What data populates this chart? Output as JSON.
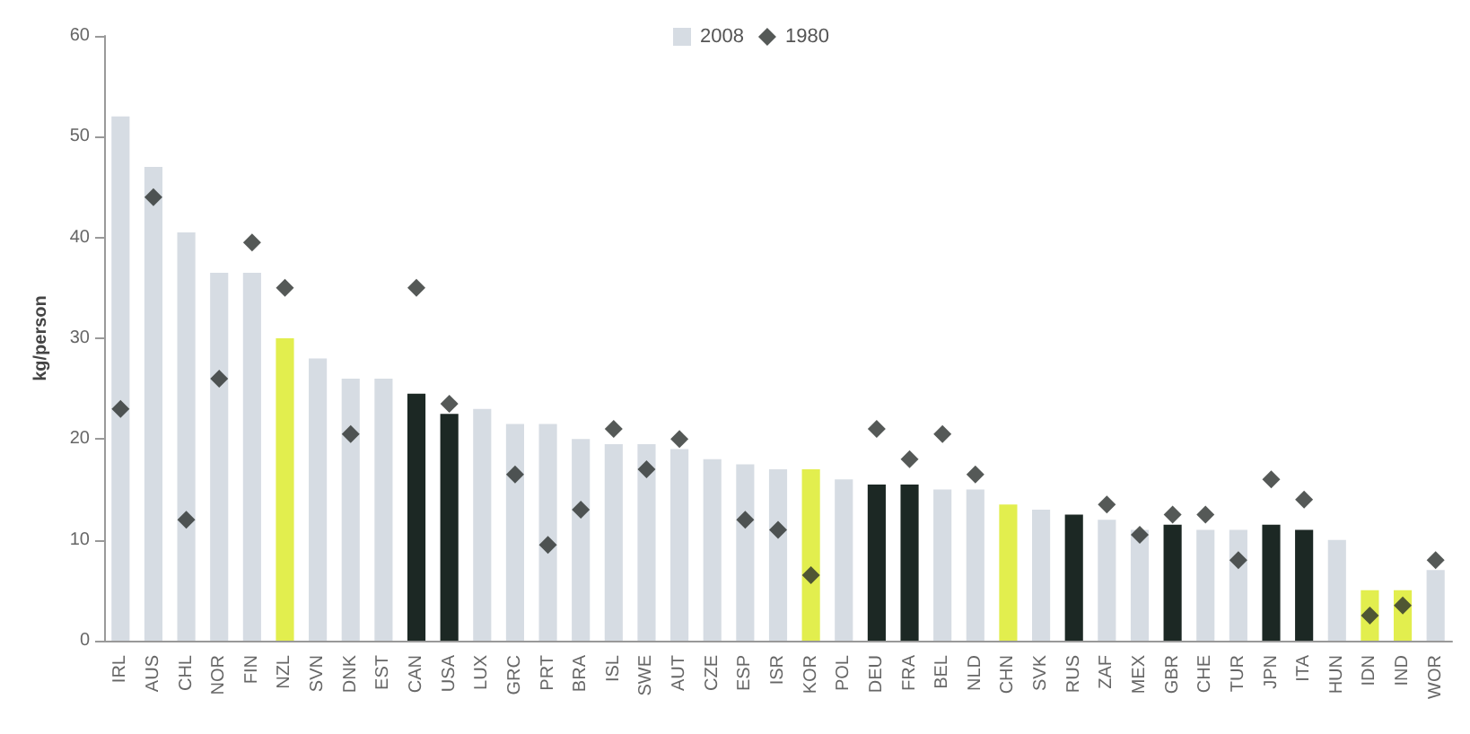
{
  "chart_data": {
    "type": "bar",
    "ylabel": "kg/person",
    "categories": [
      "IRL",
      "AUS",
      "CHL",
      "NOR",
      "FIN",
      "NZL",
      "SVN",
      "DNK",
      "EST",
      "CAN",
      "USA",
      "LUX",
      "GRC",
      "PRT",
      "BRA",
      "ISL",
      "SWE",
      "AUT",
      "CZE",
      "ESP",
      "ISR",
      "KOR",
      "POL",
      "DEU",
      "FRA",
      "BEL",
      "NLD",
      "CHN",
      "SVK",
      "RUS",
      "ZAF",
      "MEX",
      "GBR",
      "CHE",
      "TUR",
      "JPN",
      "ITA",
      "HUN",
      "IDN",
      "IND",
      "WOR"
    ],
    "series": [
      {
        "name": "2008",
        "color": "#d6dce3",
        "colors": [
          "#d6dce3",
          "#d6dce3",
          "#d6dce3",
          "#d6dce3",
          "#d6dce3",
          "#e2ee4e",
          "#d6dce3",
          "#d6dce3",
          "#d6dce3",
          "#1c2824",
          "#1c2824",
          "#d6dce3",
          "#d6dce3",
          "#d6dce3",
          "#d6dce3",
          "#d6dce3",
          "#d6dce3",
          "#d6dce3",
          "#d6dce3",
          "#d6dce3",
          "#d6dce3",
          "#e2ee4e",
          "#d6dce3",
          "#1c2824",
          "#1c2824",
          "#d6dce3",
          "#d6dce3",
          "#e2ee4e",
          "#d6dce3",
          "#1c2824",
          "#d6dce3",
          "#d6dce3",
          "#1c2824",
          "#d6dce3",
          "#d6dce3",
          "#1c2824",
          "#1c2824",
          "#d6dce3",
          "#e2ee4e",
          "#e2ee4e",
          "#d6dce3"
        ],
        "values": [
          52,
          47,
          40.5,
          36.5,
          36.5,
          30,
          28,
          26,
          26,
          24.5,
          22.5,
          23,
          21.5,
          21.5,
          20,
          19.5,
          19.5,
          19,
          18,
          17.5,
          17,
          17,
          16,
          15.5,
          15.5,
          15,
          15,
          13.5,
          13,
          12.5,
          12,
          11,
          11.5,
          11,
          11,
          11.5,
          11,
          10,
          5,
          5,
          7
        ]
      },
      {
        "name": "1980",
        "type": "scatter",
        "color": "#2a2f2d",
        "values": [
          23,
          44,
          12,
          26,
          39.5,
          35,
          null,
          20.5,
          null,
          35,
          23.5,
          null,
          16.5,
          9.5,
          13,
          21,
          17,
          20,
          null,
          12,
          11,
          6.5,
          null,
          21,
          18,
          20.5,
          16.5,
          null,
          null,
          null,
          13.5,
          10.5,
          12.5,
          12.5,
          8,
          16,
          14,
          null,
          2.5,
          3.5,
          8
        ]
      }
    ],
    "ylim": [
      0,
      60
    ],
    "yticks": [
      0,
      10,
      20,
      30,
      40,
      50,
      60
    ],
    "grid": false,
    "legend": "top",
    "marker": "diamond"
  }
}
